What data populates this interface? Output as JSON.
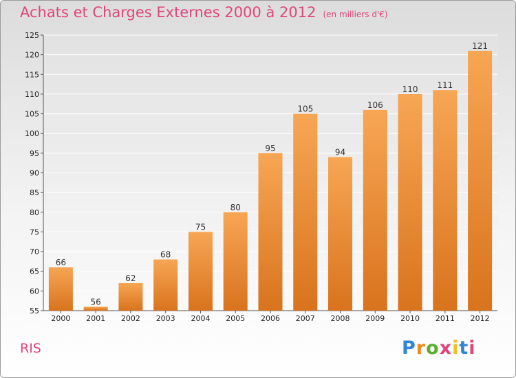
{
  "title": "Achats et Charges Externes 2000 à 2012",
  "unit": "(en milliers d'€)",
  "place": "RIS",
  "logo": {
    "text": "Proxiti",
    "colors": [
      "#2f86d6",
      "#f08a1c",
      "#5aae2e",
      "#e0457b",
      "#f0c020",
      "#2f86d6",
      "#e0457b"
    ]
  },
  "colors": {
    "bar_light": "#f7a654",
    "bar_dark": "#d9731d",
    "title": "#e0457b"
  },
  "chart_data": {
    "type": "bar",
    "title": "Achats et Charges Externes 2000 à 2012",
    "subtitle": "(en milliers d'€)",
    "categories": [
      "2000",
      "2001",
      "2002",
      "2003",
      "2004",
      "2005",
      "2006",
      "2007",
      "2008",
      "2009",
      "2010",
      "2011",
      "2012"
    ],
    "values": [
      66,
      56,
      62,
      68,
      75,
      80,
      95,
      105,
      94,
      106,
      110,
      111,
      121
    ],
    "ylim": [
      55,
      125
    ],
    "yticks": [
      55,
      60,
      65,
      70,
      75,
      80,
      85,
      90,
      95,
      100,
      105,
      110,
      115,
      120,
      125
    ],
    "grid": true,
    "data_labels": true
  }
}
